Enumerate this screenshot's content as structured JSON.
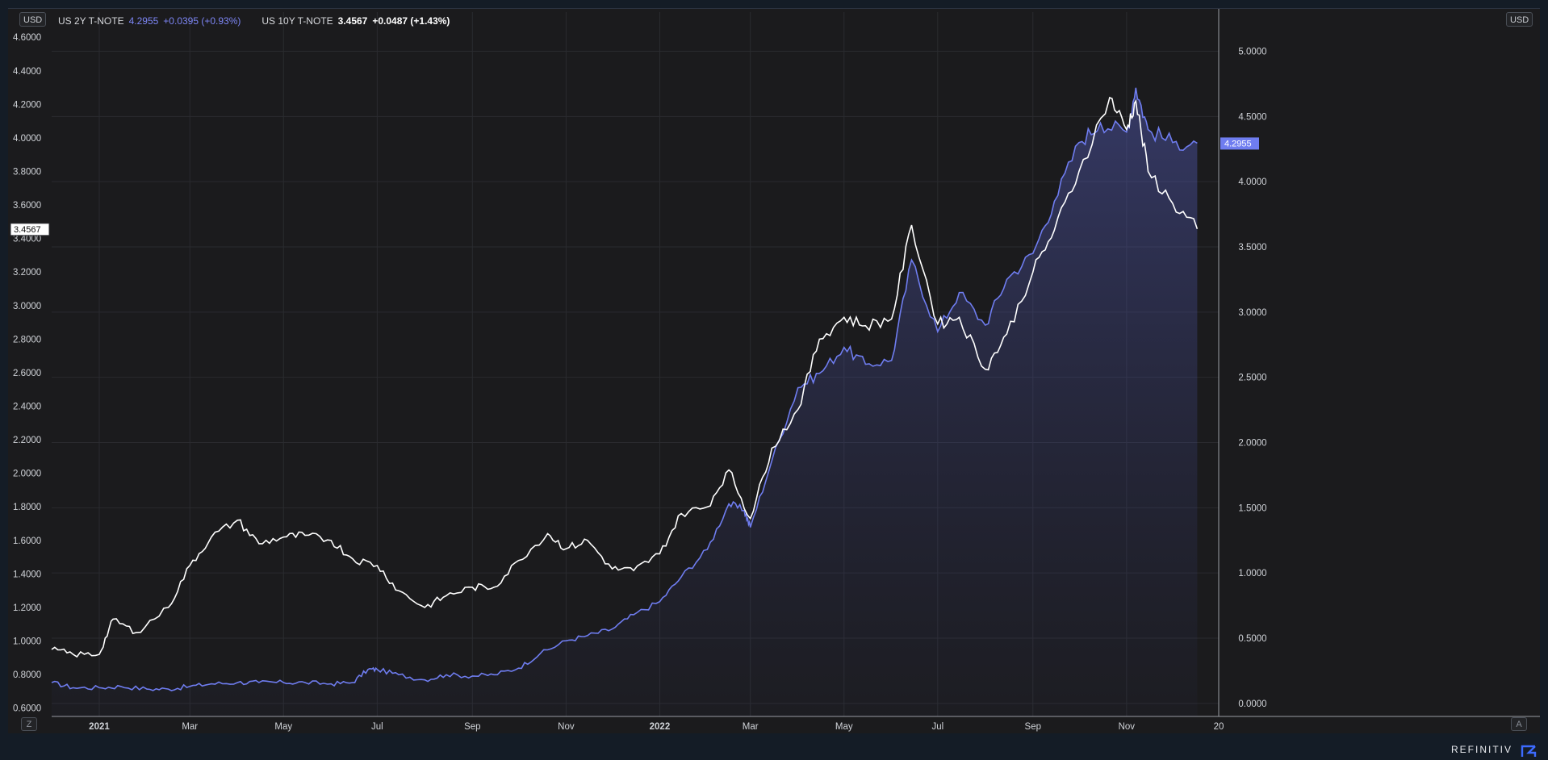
{
  "currency_left": "USD",
  "currency_right": "USD",
  "legend": {
    "s2_name": "US 2Y T-NOTE",
    "s2_value": "4.2955",
    "s2_change": "+0.0395 (+0.93%)",
    "s10_name": "US 10Y T-NOTE",
    "s10_value": "3.4567",
    "s10_change": "+0.0487 (+1.43%)"
  },
  "buttons": {
    "zoom": "Z",
    "auto": "A"
  },
  "brand": "REFINITIV",
  "colors": {
    "s2": "#6f7df0",
    "s10": "#ffffff",
    "grid": "#2a2b2f",
    "axis_text": "#d0d3d8"
  },
  "chart_data": {
    "type": "line",
    "grid": true,
    "x_ticks": [
      "2021",
      "Mar",
      "May",
      "Jul",
      "Sep",
      "Nov",
      "2022",
      "Mar",
      "May",
      "Jul",
      "Sep",
      "Nov",
      "20"
    ],
    "left_axis": {
      "range": [
        0.55,
        4.75
      ],
      "ticks": [
        "0.6000",
        "0.8000",
        "1.0000",
        "1.2000",
        "1.4000",
        "1.6000",
        "1.8000",
        "2.0000",
        "2.2000",
        "2.4000",
        "2.6000",
        "2.8000",
        "3.0000",
        "3.2000",
        "3.4000",
        "3.6000",
        "3.8000",
        "4.0000",
        "4.2000",
        "4.4000",
        "4.6000"
      ]
    },
    "right_axis": {
      "range": [
        -0.1,
        5.3
      ],
      "ticks": [
        "0.0000",
        "0.5000",
        "1.0000",
        "1.5000",
        "2.0000",
        "2.5000",
        "3.0000",
        "3.5000",
        "4.0000",
        "4.5000",
        "5.0000"
      ]
    },
    "last_label_left": "3.4567",
    "last_label_right": "4.2955",
    "series": [
      {
        "name": "US 2Y T-NOTE",
        "axis": "right",
        "points": [
          [
            "2020-12-01",
            0.16
          ],
          [
            "2020-12-15",
            0.12
          ],
          [
            "2021-01-01",
            0.12
          ],
          [
            "2021-01-15",
            0.13
          ],
          [
            "2021-02-01",
            0.11
          ],
          [
            "2021-02-15",
            0.11
          ],
          [
            "2021-03-01",
            0.13
          ],
          [
            "2021-03-15",
            0.15
          ],
          [
            "2021-04-01",
            0.16
          ],
          [
            "2021-04-15",
            0.16
          ],
          [
            "2021-05-01",
            0.16
          ],
          [
            "2021-05-15",
            0.16
          ],
          [
            "2021-06-01",
            0.15
          ],
          [
            "2021-06-15",
            0.16
          ],
          [
            "2021-06-25",
            0.26
          ],
          [
            "2021-07-01",
            0.26
          ],
          [
            "2021-07-15",
            0.22
          ],
          [
            "2021-08-01",
            0.18
          ],
          [
            "2021-08-15",
            0.22
          ],
          [
            "2021-09-01",
            0.21
          ],
          [
            "2021-09-15",
            0.22
          ],
          [
            "2021-10-01",
            0.27
          ],
          [
            "2021-10-15",
            0.38
          ],
          [
            "2021-11-01",
            0.48
          ],
          [
            "2021-11-15",
            0.52
          ],
          [
            "2021-12-01",
            0.57
          ],
          [
            "2021-12-15",
            0.68
          ],
          [
            "2022-01-01",
            0.78
          ],
          [
            "2022-01-15",
            0.97
          ],
          [
            "2022-02-01",
            1.18
          ],
          [
            "2022-02-15",
            1.53
          ],
          [
            "2022-02-25",
            1.48
          ],
          [
            "2022-03-01",
            1.35
          ],
          [
            "2022-03-15",
            1.86
          ],
          [
            "2022-04-01",
            2.42
          ],
          [
            "2022-04-15",
            2.53
          ],
          [
            "2022-05-01",
            2.73
          ],
          [
            "2022-05-15",
            2.6
          ],
          [
            "2022-06-01",
            2.63
          ],
          [
            "2022-06-14",
            3.4
          ],
          [
            "2022-07-01",
            2.85
          ],
          [
            "2022-07-15",
            3.15
          ],
          [
            "2022-08-01",
            2.9
          ],
          [
            "2022-08-15",
            3.25
          ],
          [
            "2022-09-01",
            3.45
          ],
          [
            "2022-09-15",
            3.85
          ],
          [
            "2022-10-01",
            4.3
          ],
          [
            "2022-10-15",
            4.45
          ],
          [
            "2022-11-01",
            4.38
          ],
          [
            "2022-11-07",
            4.72
          ],
          [
            "2022-11-15",
            4.4
          ],
          [
            "2022-12-01",
            4.3
          ],
          [
            "2022-12-17",
            4.2955
          ]
        ]
      },
      {
        "name": "US 10Y T-NOTE",
        "axis": "left",
        "points": [
          [
            "2020-12-01",
            0.95
          ],
          [
            "2020-12-15",
            0.92
          ],
          [
            "2021-01-01",
            0.92
          ],
          [
            "2021-01-10",
            1.13
          ],
          [
            "2021-01-25",
            1.05
          ],
          [
            "2021-02-15",
            1.2
          ],
          [
            "2021-03-01",
            1.45
          ],
          [
            "2021-03-15",
            1.62
          ],
          [
            "2021-04-01",
            1.72
          ],
          [
            "2021-04-15",
            1.58
          ],
          [
            "2021-05-01",
            1.62
          ],
          [
            "2021-05-15",
            1.63
          ],
          [
            "2021-06-01",
            1.6
          ],
          [
            "2021-06-15",
            1.49
          ],
          [
            "2021-07-01",
            1.45
          ],
          [
            "2021-07-15",
            1.3
          ],
          [
            "2021-08-01",
            1.2
          ],
          [
            "2021-08-15",
            1.27
          ],
          [
            "2021-09-01",
            1.32
          ],
          [
            "2021-09-15",
            1.32
          ],
          [
            "2021-10-01",
            1.48
          ],
          [
            "2021-10-20",
            1.64
          ],
          [
            "2021-11-01",
            1.55
          ],
          [
            "2021-11-15",
            1.6
          ],
          [
            "2021-12-01",
            1.43
          ],
          [
            "2021-12-15",
            1.42
          ],
          [
            "2022-01-01",
            1.52
          ],
          [
            "2022-01-15",
            1.76
          ],
          [
            "2022-02-01",
            1.8
          ],
          [
            "2022-02-15",
            2.02
          ],
          [
            "2022-03-01",
            1.73
          ],
          [
            "2022-03-15",
            2.15
          ],
          [
            "2022-04-01",
            2.38
          ],
          [
            "2022-04-15",
            2.8
          ],
          [
            "2022-05-01",
            2.93
          ],
          [
            "2022-05-15",
            2.88
          ],
          [
            "2022-06-01",
            2.92
          ],
          [
            "2022-06-14",
            3.48
          ],
          [
            "2022-07-01",
            2.89
          ],
          [
            "2022-07-15",
            2.93
          ],
          [
            "2022-08-01",
            2.62
          ],
          [
            "2022-08-15",
            2.83
          ],
          [
            "2022-09-01",
            3.2
          ],
          [
            "2022-09-15",
            3.45
          ],
          [
            "2022-10-01",
            3.8
          ],
          [
            "2022-10-21",
            4.24
          ],
          [
            "2022-11-01",
            4.05
          ],
          [
            "2022-11-07",
            4.22
          ],
          [
            "2022-11-15",
            3.8
          ],
          [
            "2022-12-01",
            3.61
          ],
          [
            "2022-12-17",
            3.4567
          ]
        ]
      }
    ]
  }
}
